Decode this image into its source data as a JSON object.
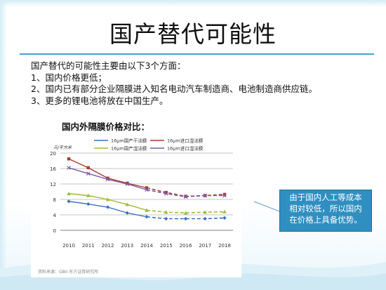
{
  "title": "国产替代可能性",
  "intro": "国产替代的可能性主要由以下3个方面：",
  "points": [
    "1、国内价格更低；",
    "2、国内已有部分企业隔膜进入知名电动汽车制造商、电池制造商供应链。",
    "3、更多的锂电池将放在中国生产。"
  ],
  "chart_heading": "国内外隔膜价格对比：",
  "callout": [
    "由于国内人工等成本",
    "相对较低，所以国内",
    "在价格上具备优势。"
  ],
  "source_note": "资料来源：GBII 东方证券研究所",
  "colors": {
    "accent": "#4a9fd0",
    "callout_bg": "#2f8fc0"
  },
  "chart_data": {
    "type": "line",
    "title": "",
    "corner_label": "元/平方米",
    "x": [
      "2010",
      "2011",
      "2012",
      "2013",
      "2014",
      "2015",
      "2016",
      "2017",
      "2018"
    ],
    "ylim": [
      0,
      20
    ],
    "yticks": [
      0,
      4,
      8,
      12,
      16,
      20
    ],
    "grid": true,
    "forecast_from": "2014",
    "series": [
      {
        "name": "16μm国产干法膜",
        "color": "#3b6dbd",
        "marker": "diamond",
        "values": [
          7.5,
          6.8,
          6.0,
          4.5,
          3.5,
          3.0,
          3.0,
          3.0,
          3.2
        ]
      },
      {
        "name": "16μm进口湿法膜",
        "color": "#a83a32",
        "marker": "square",
        "values": [
          18.5,
          16.2,
          13.5,
          12.2,
          11.0,
          9.8,
          8.8,
          9.0,
          9.3
        ]
      },
      {
        "name": "16μm国产湿法膜",
        "color": "#9bbb3a",
        "marker": "triangle",
        "values": [
          9.5,
          9.0,
          8.0,
          6.7,
          5.2,
          4.7,
          4.5,
          4.7,
          4.8
        ]
      },
      {
        "name": "16μm进口湿法膜",
        "color": "#7a5aa8",
        "marker": "cross",
        "values": [
          16.2,
          14.7,
          13.2,
          12.0,
          10.5,
          9.5,
          8.7,
          9.0,
          9.0
        ]
      }
    ]
  }
}
